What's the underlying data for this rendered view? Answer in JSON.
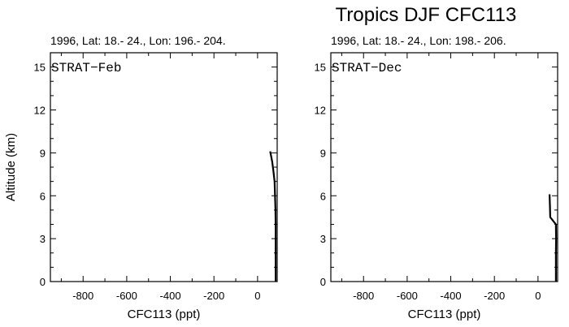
{
  "figure": {
    "title": "Tropics DJF CFC113"
  },
  "chart_data": [
    {
      "type": "line",
      "subtitle": "1996, Lat: 18.- 24., Lon: 196.- 204.",
      "panel_label": "STRAT−Feb",
      "xlabel": "CFC113 (ppt)",
      "ylabel": "Altitude (km)",
      "xlim": [
        -950,
        90
      ],
      "ylim": [
        0,
        16
      ],
      "xticks": [
        -800,
        -600,
        -400,
        -200,
        0
      ],
      "xtick_labels": [
        "-800",
        "-600",
        "-400",
        "-200",
        "0"
      ],
      "yticks": [
        0,
        3,
        6,
        9,
        12,
        15
      ],
      "ytick_labels": [
        "0",
        "3",
        "6",
        "9",
        "12",
        "15"
      ],
      "series": [
        {
          "x": [
            83,
            83,
            83,
            83,
            83,
            82,
            78,
            72,
            67,
            58
          ],
          "y": [
            0,
            1,
            2,
            3,
            4,
            5,
            7,
            7.8,
            8.4,
            9.1
          ],
          "color": "#000000"
        }
      ]
    },
    {
      "type": "line",
      "subtitle": "1996, Lat: 18.- 24., Lon: 198.- 206.",
      "panel_label": "STRAT−Dec",
      "xlabel": "CFC113 (ppt)",
      "ylabel": "",
      "xlim": [
        -950,
        90
      ],
      "ylim": [
        0,
        16
      ],
      "xticks": [
        -800,
        -600,
        -400,
        -200,
        0
      ],
      "xtick_labels": [
        "-800",
        "-600",
        "-400",
        "-200",
        "0"
      ],
      "yticks": [
        0,
        3,
        6,
        9,
        12,
        15
      ],
      "ytick_labels": [
        "0",
        "3",
        "6",
        "9",
        "12",
        "15"
      ],
      "series": [
        {
          "x": [
            82,
            82,
            82,
            83,
            82,
            56,
            55,
            53
          ],
          "y": [
            0,
            1,
            2,
            3,
            4,
            4.5,
            5.2,
            6.1
          ],
          "color": "#000000"
        }
      ]
    }
  ]
}
